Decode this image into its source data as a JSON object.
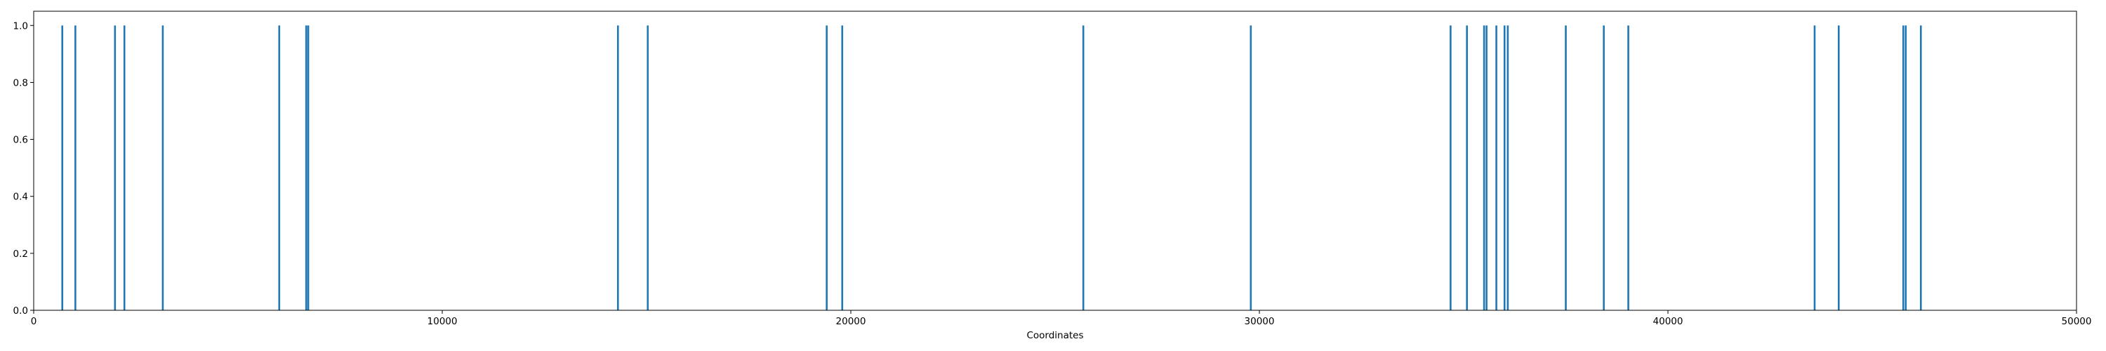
{
  "chart_data": {
    "type": "bar",
    "title": "",
    "xlabel": "Coordinates",
    "ylabel": "",
    "xlim": [
      0,
      50000
    ],
    "ylim": [
      0,
      1.05
    ],
    "xticks": [
      0,
      10000,
      20000,
      30000,
      40000,
      50000
    ],
    "yticks": [
      0.0,
      0.2,
      0.4,
      0.6,
      0.8,
      1.0
    ],
    "xtick_labels": [
      "0",
      "10000",
      "20000",
      "30000",
      "40000",
      "50000"
    ],
    "ytick_labels": [
      "0.0",
      "0.2",
      "0.4",
      "0.6",
      "0.8",
      "1.0"
    ],
    "grid": false,
    "color": "#1f77b4",
    "x": [
      700,
      1020,
      1990,
      2220,
      3160,
      6010,
      6670,
      6720,
      14300,
      15030,
      19410,
      19790,
      25690,
      29790,
      34680,
      35080,
      35500,
      35560,
      35800,
      36000,
      36080,
      37500,
      38430,
      39030,
      43590,
      44180,
      45760,
      45820,
      46190
    ],
    "values": [
      1,
      1,
      1,
      1,
      1,
      1,
      1,
      1,
      1,
      1,
      1,
      1,
      1,
      1,
      1,
      1,
      1,
      1,
      1,
      1,
      1,
      1,
      1,
      1,
      1,
      1,
      1,
      1,
      1
    ]
  }
}
